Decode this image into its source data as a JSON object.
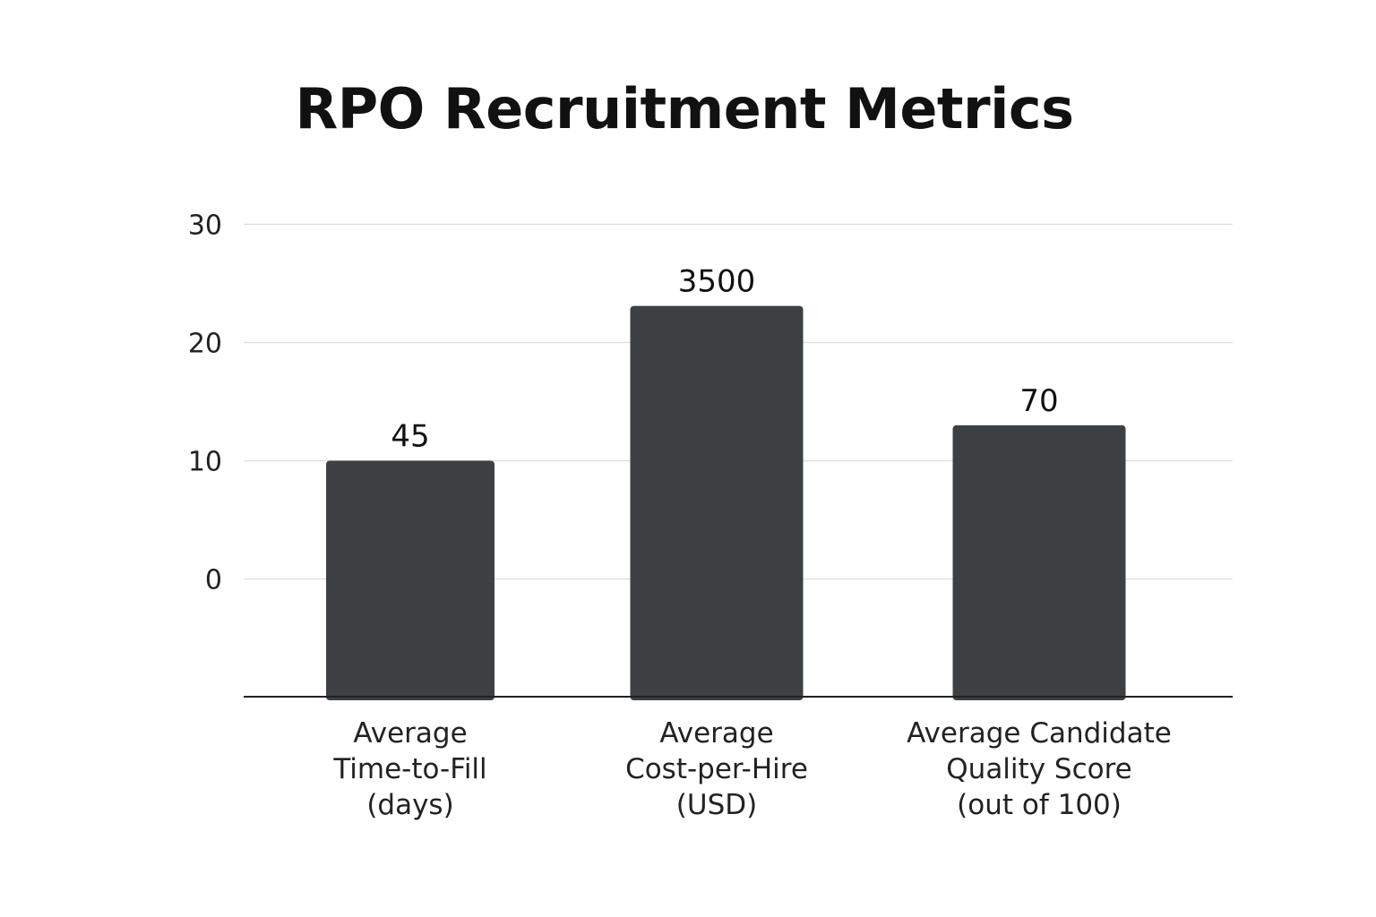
{
  "chart_data": {
    "type": "bar",
    "title": "RPO Recruitment Metrics",
    "categories": [
      [
        "Average",
        "Time-to-Fill",
        "(days)"
      ],
      [
        "Average",
        "Cost-per-Hire",
        "(USD)"
      ],
      [
        "Average Candidate",
        "Quality Score",
        "(out of 100)"
      ]
    ],
    "values": [
      45,
      3500,
      70
    ],
    "bar_heights_on_axis": [
      10,
      23.1,
      13
    ],
    "data_labels": [
      "45",
      "3500",
      "70"
    ],
    "y_ticks": [
      "0",
      "10",
      "20",
      "30"
    ],
    "y_tick_values": [
      0,
      10,
      20,
      30
    ],
    "ylim": [
      -10,
      30
    ],
    "grid": true,
    "legend": "none",
    "bar_color": "#3d4144"
  }
}
